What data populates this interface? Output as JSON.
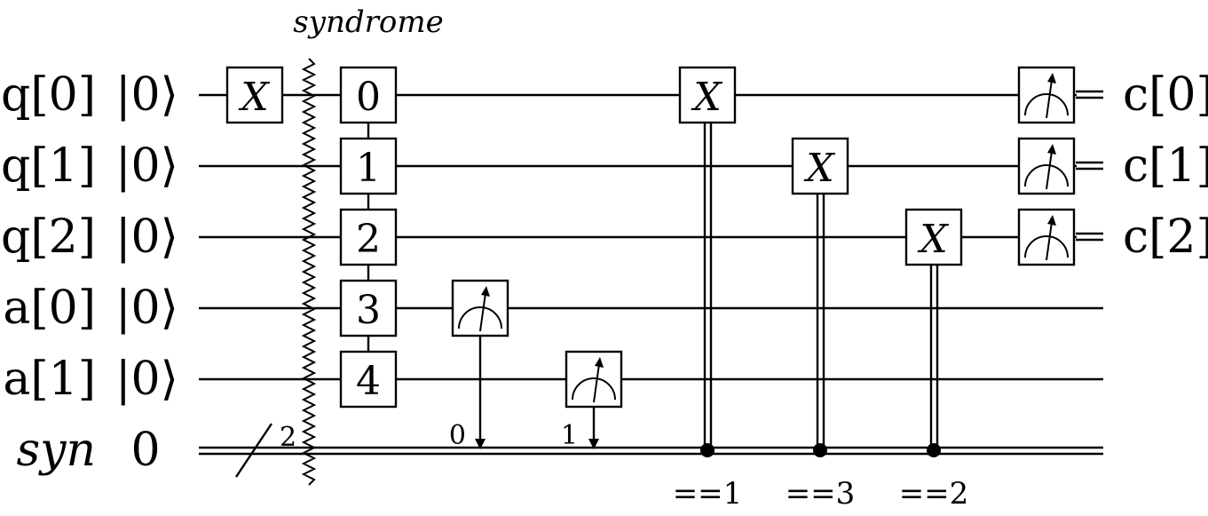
{
  "barrier_label": "syndrome",
  "qubit_wires": [
    {
      "name": "q[0]",
      "init": "|0⟩"
    },
    {
      "name": "q[1]",
      "init": "|0⟩"
    },
    {
      "name": "q[2]",
      "init": "|0⟩"
    },
    {
      "name": "a[0]",
      "init": "|0⟩"
    },
    {
      "name": "a[1]",
      "init": "|0⟩"
    }
  ],
  "classical_register": {
    "name": "syn",
    "init": "0",
    "width": "2"
  },
  "gates": {
    "initial_x": "X",
    "block_indices": [
      "0",
      "1",
      "2",
      "3",
      "4"
    ],
    "conditional_x": [
      {
        "symbol": "X",
        "target": "q[0]",
        "condition": "==1"
      },
      {
        "symbol": "X",
        "target": "q[1]",
        "condition": "==3"
      },
      {
        "symbol": "X",
        "target": "q[2]",
        "condition": "==2"
      }
    ]
  },
  "syndrome_measurements": [
    {
      "qubit": "a[0]",
      "bit": "0"
    },
    {
      "qubit": "a[1]",
      "bit": "1"
    }
  ],
  "output_bits": [
    "c[0]",
    "c[1]",
    "c[2]"
  ]
}
